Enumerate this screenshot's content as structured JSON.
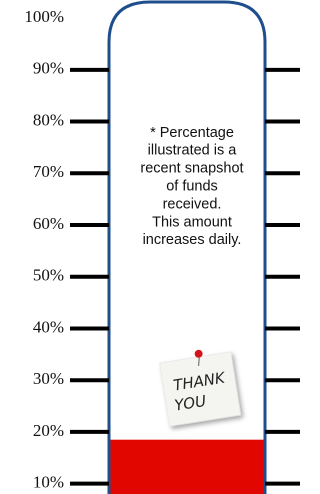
{
  "chart_data": {
    "type": "thermometer",
    "value": 18.5,
    "color": "#e10600",
    "tube_color": "#1f4e8c",
    "ylim": [
      8,
      103.5
    ],
    "yticks": [
      {
        "value": 10,
        "label": "10%"
      },
      {
        "value": 20,
        "label": "20%"
      },
      {
        "value": 30,
        "label": "30%"
      },
      {
        "value": 40,
        "label": "40%"
      },
      {
        "value": 50,
        "label": "50%"
      },
      {
        "value": 60,
        "label": "60%"
      },
      {
        "value": 70,
        "label": "70%"
      },
      {
        "value": 80,
        "label": "80%"
      },
      {
        "value": 90,
        "label": "90%"
      },
      {
        "value": 100,
        "label": "100%"
      }
    ],
    "annotation": [
      "* Percentage",
      "illustrated is a",
      "recent snapshot",
      "of funds",
      "received.",
      "This amount",
      "increases daily."
    ],
    "sticky_note": [
      "THANK",
      "YOU"
    ]
  }
}
